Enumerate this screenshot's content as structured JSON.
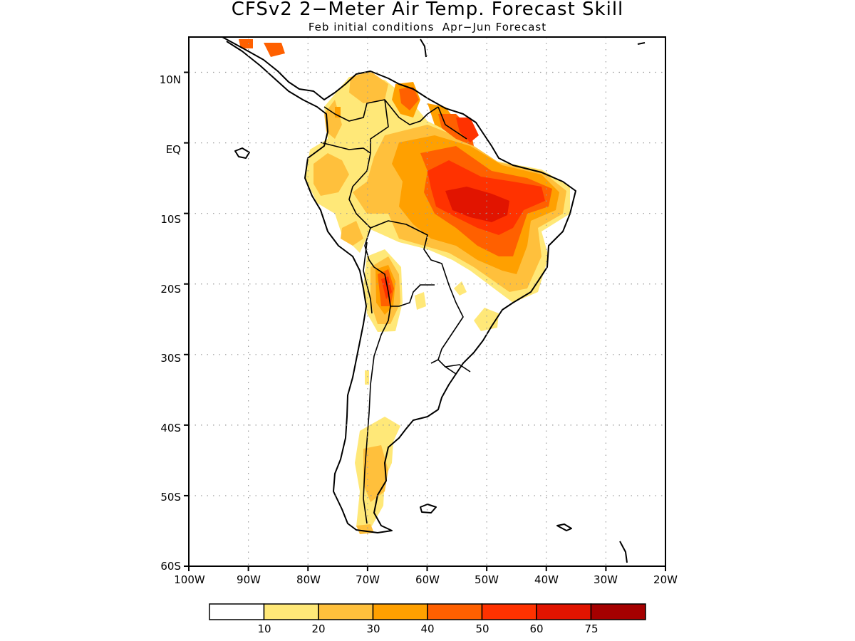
{
  "title": "CFSv2 2−Meter Air Temp. Forecast Skill",
  "subtitle": "Feb initial conditions  Apr−Jun Forecast",
  "axes": {
    "lat_ticks": [
      "10N",
      "EQ",
      "10S",
      "20S",
      "30S",
      "40S",
      "50S",
      "60S"
    ],
    "lon_ticks": [
      "100W",
      "90W",
      "80W",
      "70W",
      "60W",
      "50W",
      "40W",
      "30W",
      "20W"
    ]
  },
  "map_extent": {
    "lon": [
      -100,
      -20
    ],
    "lat": [
      -60,
      15
    ]
  },
  "grid": "dotted",
  "colorbar": {
    "colors": [
      "#ffffff",
      "#ffe878",
      "#ffc03c",
      "#ffa000",
      "#ff6000",
      "#ff3200",
      "#e11400",
      "#a50000"
    ],
    "labels": [
      "10",
      "20",
      "30",
      "40",
      "50",
      "60",
      "75"
    ]
  }
}
